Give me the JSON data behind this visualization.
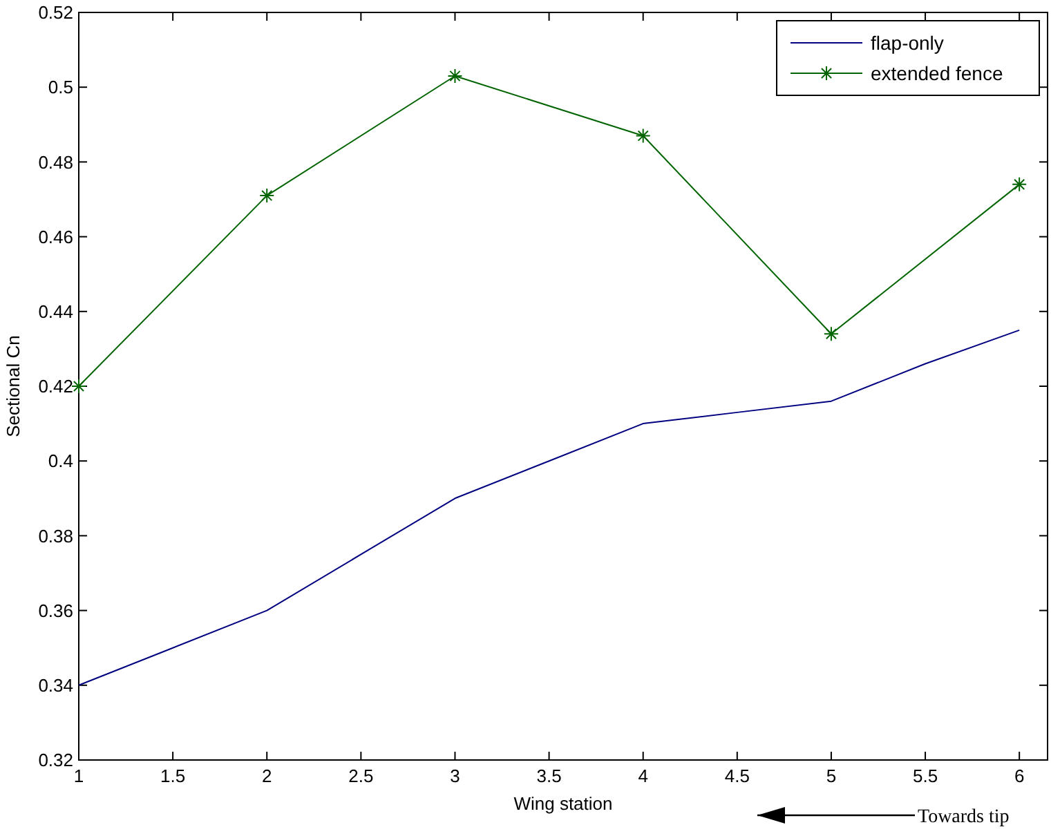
{
  "chart_data": {
    "type": "line",
    "xlabel": "Wing station",
    "ylabel": "Sectional Cn",
    "xlim": [
      1,
      6.15
    ],
    "ylim": [
      0.32,
      0.52
    ],
    "xticks": [
      1,
      1.5,
      2,
      2.5,
      3,
      3.5,
      4,
      4.5,
      5,
      5.5,
      6
    ],
    "yticks": [
      0.32,
      0.34,
      0.36,
      0.38,
      0.4,
      0.42,
      0.44,
      0.46,
      0.48,
      0.5,
      0.52
    ],
    "grid": false,
    "legend": "top right",
    "line_style": "solid",
    "series": [
      {
        "name": "flap-only",
        "color": "#000080",
        "marker": "none",
        "x": [
          1,
          1.5,
          2,
          2.5,
          3,
          3.5,
          4,
          4.5,
          5,
          5.5,
          6
        ],
        "values": [
          0.34,
          0.35,
          0.36,
          0.375,
          0.39,
          0.4,
          0.41,
          0.413,
          0.416,
          0.426,
          0.435
        ]
      },
      {
        "name": "extended fence",
        "color": "#006400",
        "marker": "cross",
        "x": [
          1,
          2,
          3,
          4,
          5,
          6
        ],
        "values": [
          0.42,
          0.471,
          0.503,
          0.487,
          0.434,
          0.474
        ]
      }
    ],
    "annotations": [
      "Towards tip"
    ]
  }
}
